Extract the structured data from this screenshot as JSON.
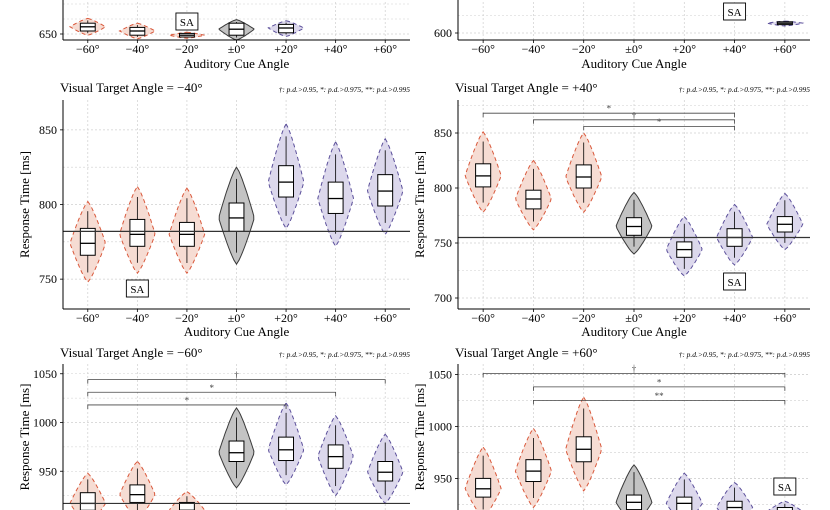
{
  "figure": {
    "significance_note": "†: p.d.>0.95, *: p.d.>0.975, **: p.d.>0.995",
    "sa_label": "SA",
    "x_tick_labels": [
      "−60°",
      "−40°",
      "−20°",
      "±0°",
      "+20°",
      "+40°",
      "+60°"
    ],
    "y_axis_label": "Response Time [ms]",
    "x_axis_label": "Auditory Cue Angle",
    "colors": {
      "left_side": "#d9583b",
      "left_fill": "#f6dcd3",
      "center": "#3a3a3a",
      "center_fill": "#bdbdbd",
      "right_side": "#5b4f9a",
      "right_fill": "#dcd8ec",
      "grid": "#cfcfcf",
      "box_fill": "#ffffff"
    }
  },
  "chart_data": [
    {
      "type": "violin",
      "panel": "top-left",
      "title": "",
      "xlabel": "Auditory Cue Angle",
      "ylabel": "",
      "categories": [
        "−60°",
        "−40°",
        "−20°",
        "±0°",
        "+20°",
        "+40°",
        "+60°"
      ],
      "y_ticks": [
        650
      ],
      "y_tick_labels": [
        "650"
      ],
      "ylim": [
        640,
        710
      ],
      "baseline": null,
      "sa_category": "−20°",
      "violins": [
        {
          "median": 662,
          "q1": 655,
          "q3": 668,
          "min": 648,
          "max": 676
        },
        {
          "median": 655,
          "q1": 648,
          "q3": 661,
          "min": 642,
          "max": 668
        },
        {
          "median": 648,
          "q1": 645,
          "q3": 651,
          "min": 643,
          "max": 653
        },
        {
          "median": 658,
          "q1": 648,
          "q3": 668,
          "min": 640,
          "max": 674
        },
        {
          "median": 660,
          "q1": 652,
          "q3": 666,
          "min": 646,
          "max": 672
        },
        null,
        null
      ],
      "brackets": []
    },
    {
      "type": "violin",
      "panel": "top-right",
      "title": "",
      "xlabel": "Auditory Cue Angle",
      "ylabel": "",
      "categories": [
        "−60°",
        "−40°",
        "−20°",
        "±0°",
        "+20°",
        "+40°",
        "+60°"
      ],
      "y_ticks": [
        600
      ],
      "y_tick_labels": [
        "600"
      ],
      "ylim": [
        590,
        650
      ],
      "baseline": null,
      "sa_category": "+40°",
      "violins": [
        null,
        null,
        null,
        null,
        null,
        null,
        {
          "median": 614,
          "q1": 612,
          "q3": 616,
          "min": 610,
          "max": 617
        }
      ],
      "brackets": []
    },
    {
      "type": "violin",
      "panel": "middle-left",
      "title": "Visual Target Angle  = −40°",
      "xlabel": "Auditory Cue Angle",
      "ylabel": "Response Time [ms]",
      "categories": [
        "−60°",
        "−40°",
        "−20°",
        "±0°",
        "+20°",
        "+40°",
        "+60°"
      ],
      "y_ticks": [
        750,
        800,
        850
      ],
      "y_tick_labels": [
        "750",
        "800",
        "850"
      ],
      "ylim": [
        730,
        870
      ],
      "baseline": 782,
      "sa_category": "−40°",
      "violins": [
        {
          "median": 774,
          "q1": 766,
          "q3": 784,
          "min": 748,
          "max": 802
        },
        {
          "median": 780,
          "q1": 772,
          "q3": 790,
          "min": 754,
          "max": 812
        },
        {
          "median": 780,
          "q1": 772,
          "q3": 788,
          "min": 754,
          "max": 811
        },
        {
          "median": 791,
          "q1": 782,
          "q3": 801,
          "min": 760,
          "max": 825
        },
        {
          "median": 815,
          "q1": 805,
          "q3": 826,
          "min": 784,
          "max": 854
        },
        {
          "median": 804,
          "q1": 794,
          "q3": 815,
          "min": 772,
          "max": 842
        },
        {
          "median": 809,
          "q1": 799,
          "q3": 820,
          "min": 780,
          "max": 844
        }
      ],
      "brackets": []
    },
    {
      "type": "violin",
      "panel": "middle-right",
      "title": "Visual Target Angle = +40°",
      "xlabel": "Auditory Cue Angle",
      "ylabel": "Response Time [ms]",
      "categories": [
        "−60°",
        "−40°",
        "−20°",
        "±0°",
        "+20°",
        "+40°",
        "+60°"
      ],
      "y_ticks": [
        700,
        750,
        800,
        850
      ],
      "y_tick_labels": [
        "700",
        "750",
        "800",
        "850"
      ],
      "ylim": [
        690,
        880
      ],
      "baseline": 755,
      "sa_category": "+40°",
      "violins": [
        {
          "median": 811,
          "q1": 801,
          "q3": 822,
          "min": 778,
          "max": 851
        },
        {
          "median": 790,
          "q1": 781,
          "q3": 798,
          "min": 762,
          "max": 825
        },
        {
          "median": 810,
          "q1": 800,
          "q3": 821,
          "min": 778,
          "max": 850
        },
        {
          "median": 765,
          "q1": 757,
          "q3": 773,
          "min": 740,
          "max": 796
        },
        {
          "median": 744,
          "q1": 737,
          "q3": 751,
          "min": 720,
          "max": 774
        },
        {
          "median": 755,
          "q1": 747,
          "q3": 763,
          "min": 730,
          "max": 785
        },
        {
          "median": 767,
          "q1": 760,
          "q3": 774,
          "min": 744,
          "max": 795
        }
      ],
      "brackets": [
        {
          "from": "−60°",
          "to": "+40°",
          "label": "*",
          "y": 868
        },
        {
          "from": "−40°",
          "to": "+40°",
          "label": "†",
          "y": 862
        },
        {
          "from": "−20°",
          "to": "+40°",
          "label": "*",
          "y": 856
        }
      ]
    },
    {
      "type": "violin",
      "panel": "bottom-left",
      "title": "Visual Target Angle  = −60°",
      "xlabel": "",
      "ylabel": "Response Time [ms]",
      "categories": [
        "−60°",
        "−40°",
        "−20°",
        "±0°",
        "+20°",
        "+40°",
        "+60°"
      ],
      "y_ticks": [
        950,
        1000,
        1050
      ],
      "y_tick_labels": [
        "950",
        "1000",
        "1050"
      ],
      "ylim": [
        900,
        1060
      ],
      "baseline": 917,
      "sa_category": null,
      "violins": [
        {
          "median": 917,
          "q1": 910,
          "q3": 928,
          "min": 895,
          "max": 948
        },
        {
          "median": 926,
          "q1": 918,
          "q3": 936,
          "min": 900,
          "max": 960
        },
        {
          "median": 910,
          "q1": 903,
          "q3": 918,
          "min": 890,
          "max": 929
        },
        {
          "median": 969,
          "q1": 960,
          "q3": 981,
          "min": 933,
          "max": 1015
        },
        {
          "median": 972,
          "q1": 961,
          "q3": 985,
          "min": 936,
          "max": 1020
        },
        {
          "median": 965,
          "q1": 953,
          "q3": 977,
          "min": 925,
          "max": 1007
        },
        {
          "median": 949,
          "q1": 940,
          "q3": 960,
          "min": 917,
          "max": 988
        }
      ],
      "brackets": [
        {
          "from": "−60°",
          "to": "+60°",
          "label": "†",
          "y": 1044
        },
        {
          "from": "−60°",
          "to": "+40°",
          "label": "*",
          "y": 1031
        },
        {
          "from": "−60°",
          "to": "+20°",
          "label": "*",
          "y": 1018
        }
      ]
    },
    {
      "type": "violin",
      "panel": "bottom-right",
      "title": "Visual Target Angle = +60°",
      "xlabel": "",
      "ylabel": "Response Time [ms]",
      "categories": [
        "−60°",
        "−40°",
        "−20°",
        "±0°",
        "+20°",
        "+40°",
        "+60°"
      ],
      "y_ticks": [
        950,
        1000,
        1050
      ],
      "y_tick_labels": [
        "950",
        "1000",
        "1050"
      ],
      "ylim": [
        910,
        1060
      ],
      "baseline": null,
      "sa_category": "+60°",
      "violins": [
        {
          "median": 940,
          "q1": 932,
          "q3": 950,
          "min": 912,
          "max": 980
        },
        {
          "median": 957,
          "q1": 947,
          "q3": 968,
          "min": 922,
          "max": 998
        },
        {
          "median": 978,
          "q1": 966,
          "q3": 990,
          "min": 938,
          "max": 1028
        },
        {
          "median": 927,
          "q1": 920,
          "q3": 934,
          "min": 905,
          "max": 963
        },
        {
          "median": 926,
          "q1": 919,
          "q3": 932,
          "min": 905,
          "max": 955
        },
        {
          "median": 922,
          "q1": 916,
          "q3": 928,
          "min": 905,
          "max": 946
        },
        {
          "median": 918,
          "q1": 914,
          "q3": 922,
          "min": 908,
          "max": 928
        }
      ],
      "brackets": [
        {
          "from": "−60°",
          "to": "+60°",
          "label": "†",
          "y": 1051
        },
        {
          "from": "−40°",
          "to": "+60°",
          "label": "*",
          "y": 1038
        },
        {
          "from": "−40°",
          "to": "+60°",
          "label": "**",
          "y": 1025
        }
      ]
    }
  ]
}
